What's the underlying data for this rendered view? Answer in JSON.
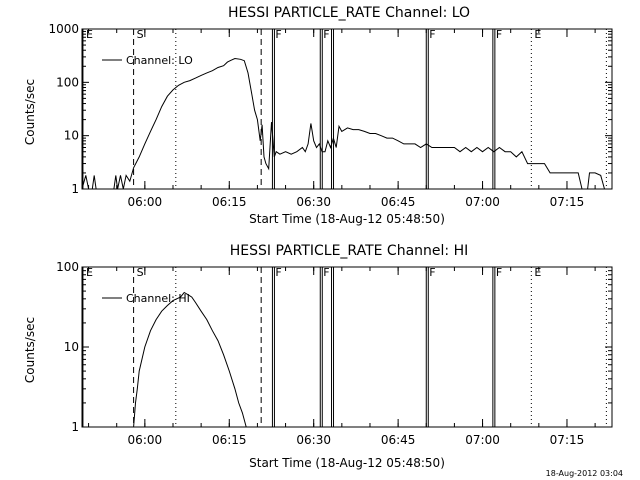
{
  "footer_stamp": "18-Aug-2012 03:04",
  "chart_data": [
    {
      "type": "line",
      "title": "HESSI PARTICLE_RATE Channel: LO",
      "xlabel": "Start Time (18-Aug-12 05:48:50)",
      "ylabel": "Counts/sec",
      "y_scale": "log",
      "ylim": [
        1,
        1000
      ],
      "xlim": [
        "05:48:50",
        "07:23:00"
      ],
      "y_ticks": [
        "1",
        "10",
        "100",
        "1000"
      ],
      "x_ticks": [
        "06:00",
        "06:15",
        "06:30",
        "06:45",
        "07:00",
        "07:15"
      ],
      "legend": {
        "position": "top-left",
        "entries": [
          "Channel: LO"
        ]
      },
      "series": [
        {
          "name": "Channel: LO",
          "points": [
            [
              "05:48:50",
              1
            ],
            [
              "05:49:30",
              1.8
            ],
            [
              "05:50:00",
              1
            ],
            [
              "05:50:40",
              1
            ],
            [
              "05:51:00",
              1.8
            ],
            [
              "05:51:20",
              1
            ],
            [
              "05:54:30",
              1
            ],
            [
              "05:54:50",
              1.8
            ],
            [
              "05:55:10",
              1
            ],
            [
              "05:55:40",
              1.8
            ],
            [
              "05:56:10",
              1
            ],
            [
              "05:56:40",
              1.8
            ],
            [
              "05:57:20",
              1.4
            ],
            [
              "05:58:00",
              2.5
            ],
            [
              "05:59:00",
              4
            ],
            [
              "06:00:00",
              7
            ],
            [
              "06:01:00",
              12
            ],
            [
              "06:02:00",
              20
            ],
            [
              "06:03:00",
              35
            ],
            [
              "06:04:00",
              55
            ],
            [
              "06:05:00",
              72
            ],
            [
              "06:06:00",
              88
            ],
            [
              "06:07:00",
              100
            ],
            [
              "06:08:00",
              108
            ],
            [
              "06:09:00",
              120
            ],
            [
              "06:10:00",
              135
            ],
            [
              "06:11:00",
              150
            ],
            [
              "06:12:00",
              165
            ],
            [
              "06:13:00",
              190
            ],
            [
              "06:14:00",
              205
            ],
            [
              "06:14:40",
              240
            ],
            [
              "06:15:20",
              260
            ],
            [
              "06:16:00",
              280
            ],
            [
              "06:17:00",
              270
            ],
            [
              "06:17:40",
              255
            ],
            [
              "06:18:20",
              150
            ],
            [
              "06:19:00",
              60
            ],
            [
              "06:19:30",
              30
            ],
            [
              "06:20:00",
              20
            ],
            [
              "06:20:30",
              8
            ],
            [
              "06:20:50",
              16
            ],
            [
              "06:21:10",
              4
            ],
            [
              "06:21:30",
              3
            ],
            [
              "06:22:00",
              2.4
            ],
            [
              "06:22:30",
              18
            ],
            [
              "06:23:00",
              4
            ],
            [
              "06:23:20",
              5
            ],
            [
              "06:24:00",
              4.5
            ],
            [
              "06:25:00",
              5
            ],
            [
              "06:26:00",
              4.5
            ],
            [
              "06:27:00",
              5
            ],
            [
              "06:28:00",
              6
            ],
            [
              "06:28:30",
              5
            ],
            [
              "06:29:00",
              7
            ],
            [
              "06:29:30",
              17
            ],
            [
              "06:30:00",
              8
            ],
            [
              "06:30:30",
              6
            ],
            [
              "06:31:00",
              7
            ],
            [
              "06:31:30",
              5
            ],
            [
              "06:32:00",
              5
            ],
            [
              "06:32:30",
              8
            ],
            [
              "06:33:00",
              6
            ],
            [
              "06:33:30",
              9
            ],
            [
              "06:34:00",
              6
            ],
            [
              "06:34:30",
              15
            ],
            [
              "06:35:00",
              12
            ],
            [
              "06:36:00",
              14
            ],
            [
              "06:37:00",
              13
            ],
            [
              "06:38:00",
              13
            ],
            [
              "06:39:00",
              12
            ],
            [
              "06:40:00",
              11
            ],
            [
              "06:41:00",
              11
            ],
            [
              "06:42:00",
              10
            ],
            [
              "06:43:00",
              9
            ],
            [
              "06:44:00",
              9
            ],
            [
              "06:45:00",
              8
            ],
            [
              "06:46:00",
              7
            ],
            [
              "06:47:00",
              7
            ],
            [
              "06:48:00",
              7
            ],
            [
              "06:49:00",
              6
            ],
            [
              "06:50:00",
              7
            ],
            [
              "06:51:00",
              6
            ],
            [
              "06:52:00",
              6
            ],
            [
              "06:53:00",
              6
            ],
            [
              "06:54:00",
              6
            ],
            [
              "06:55:00",
              6
            ],
            [
              "06:56:00",
              5
            ],
            [
              "06:57:00",
              6
            ],
            [
              "06:58:00",
              5
            ],
            [
              "06:59:00",
              6
            ],
            [
              "07:00:00",
              5
            ],
            [
              "07:01:00",
              6
            ],
            [
              "07:02:00",
              5
            ],
            [
              "07:03:00",
              6
            ],
            [
              "07:04:00",
              5
            ],
            [
              "07:05:00",
              5
            ],
            [
              "07:06:00",
              4
            ],
            [
              "07:07:00",
              5
            ],
            [
              "07:08:00",
              3
            ],
            [
              "07:09:00",
              3
            ],
            [
              "07:10:00",
              3
            ],
            [
              "07:11:00",
              3
            ],
            [
              "07:12:00",
              2
            ],
            [
              "07:13:00",
              2
            ],
            [
              "07:14:00",
              2
            ],
            [
              "07:15:00",
              2
            ],
            [
              "07:16:00",
              2
            ],
            [
              "07:17:00",
              2
            ],
            [
              "07:17:40",
              1
            ],
            [
              "07:18:40",
              1
            ],
            [
              "07:19:00",
              2
            ],
            [
              "07:20:00",
              2
            ],
            [
              "07:21:00",
              1.8
            ],
            [
              "07:21:40",
              1
            ]
          ]
        }
      ],
      "markers": [
        {
          "time": "05:49:00",
          "label": "E",
          "style": "solid"
        },
        {
          "time": "05:58:00",
          "label": "S",
          "style": "dashed"
        },
        {
          "time": "06:05:30",
          "label": "",
          "style": "dotted"
        },
        {
          "time": "06:20:40",
          "label": "",
          "style": "dashed"
        },
        {
          "time": "06:22:40",
          "label": "F",
          "style": "solid"
        },
        {
          "time": "06:31:10",
          "label": "F",
          "style": "solid"
        },
        {
          "time": "06:33:10",
          "label": "",
          "style": "solid"
        },
        {
          "time": "06:50:00",
          "label": "F",
          "style": "solid"
        },
        {
          "time": "07:01:50",
          "label": "F",
          "style": "solid"
        },
        {
          "time": "07:08:40",
          "label": "E",
          "style": "dotted"
        },
        {
          "time": "07:22:00",
          "label": "",
          "style": "dotted"
        }
      ]
    },
    {
      "type": "line",
      "title": "HESSI PARTICLE_RATE Channel: HI",
      "xlabel": "Start Time (18-Aug-12 05:48:50)",
      "ylabel": "Counts/sec",
      "y_scale": "log",
      "ylim": [
        1,
        100
      ],
      "xlim": [
        "05:48:50",
        "07:23:00"
      ],
      "y_ticks": [
        "1",
        "10",
        "100"
      ],
      "x_ticks": [
        "06:00",
        "06:15",
        "06:30",
        "06:45",
        "07:00",
        "07:15"
      ],
      "legend": {
        "position": "top-left",
        "entries": [
          "Channel: HI"
        ]
      },
      "series": [
        {
          "name": "Channel: HI",
          "points": [
            [
              "05:58:00",
              1
            ],
            [
              "05:58:20",
              2
            ],
            [
              "05:58:40",
              3
            ],
            [
              "05:59:00",
              5
            ],
            [
              "06:00:00",
              10
            ],
            [
              "06:01:00",
              16
            ],
            [
              "06:02:00",
              22
            ],
            [
              "06:03:00",
              28
            ],
            [
              "06:04:00",
              33
            ],
            [
              "06:05:00",
              38
            ],
            [
              "06:05:40",
              40
            ],
            [
              "06:06:20",
              42
            ],
            [
              "06:07:00",
              48
            ],
            [
              "06:07:40",
              45
            ],
            [
              "06:08:20",
              42
            ],
            [
              "06:09:00",
              36
            ],
            [
              "06:10:00",
              28
            ],
            [
              "06:11:00",
              22
            ],
            [
              "06:12:00",
              16
            ],
            [
              "06:13:00",
              12
            ],
            [
              "06:14:00",
              8
            ],
            [
              "06:15:00",
              5
            ],
            [
              "06:16:00",
              3
            ],
            [
              "06:16:40",
              2
            ],
            [
              "06:17:20",
              1.5
            ],
            [
              "06:18:00",
              1
            ]
          ]
        }
      ],
      "markers": [
        {
          "time": "05:49:00",
          "label": "E",
          "style": "solid"
        },
        {
          "time": "05:58:00",
          "label": "S",
          "style": "dashed"
        },
        {
          "time": "06:05:30",
          "label": "",
          "style": "dotted"
        },
        {
          "time": "06:20:40",
          "label": "",
          "style": "dashed"
        },
        {
          "time": "06:22:40",
          "label": "F",
          "style": "solid"
        },
        {
          "time": "06:31:10",
          "label": "F",
          "style": "solid"
        },
        {
          "time": "06:33:10",
          "label": "",
          "style": "solid"
        },
        {
          "time": "06:50:00",
          "label": "F",
          "style": "solid"
        },
        {
          "time": "07:01:50",
          "label": "F",
          "style": "solid"
        },
        {
          "time": "07:08:40",
          "label": "E",
          "style": "dotted"
        },
        {
          "time": "07:22:00",
          "label": "",
          "style": "dotted"
        }
      ]
    }
  ]
}
